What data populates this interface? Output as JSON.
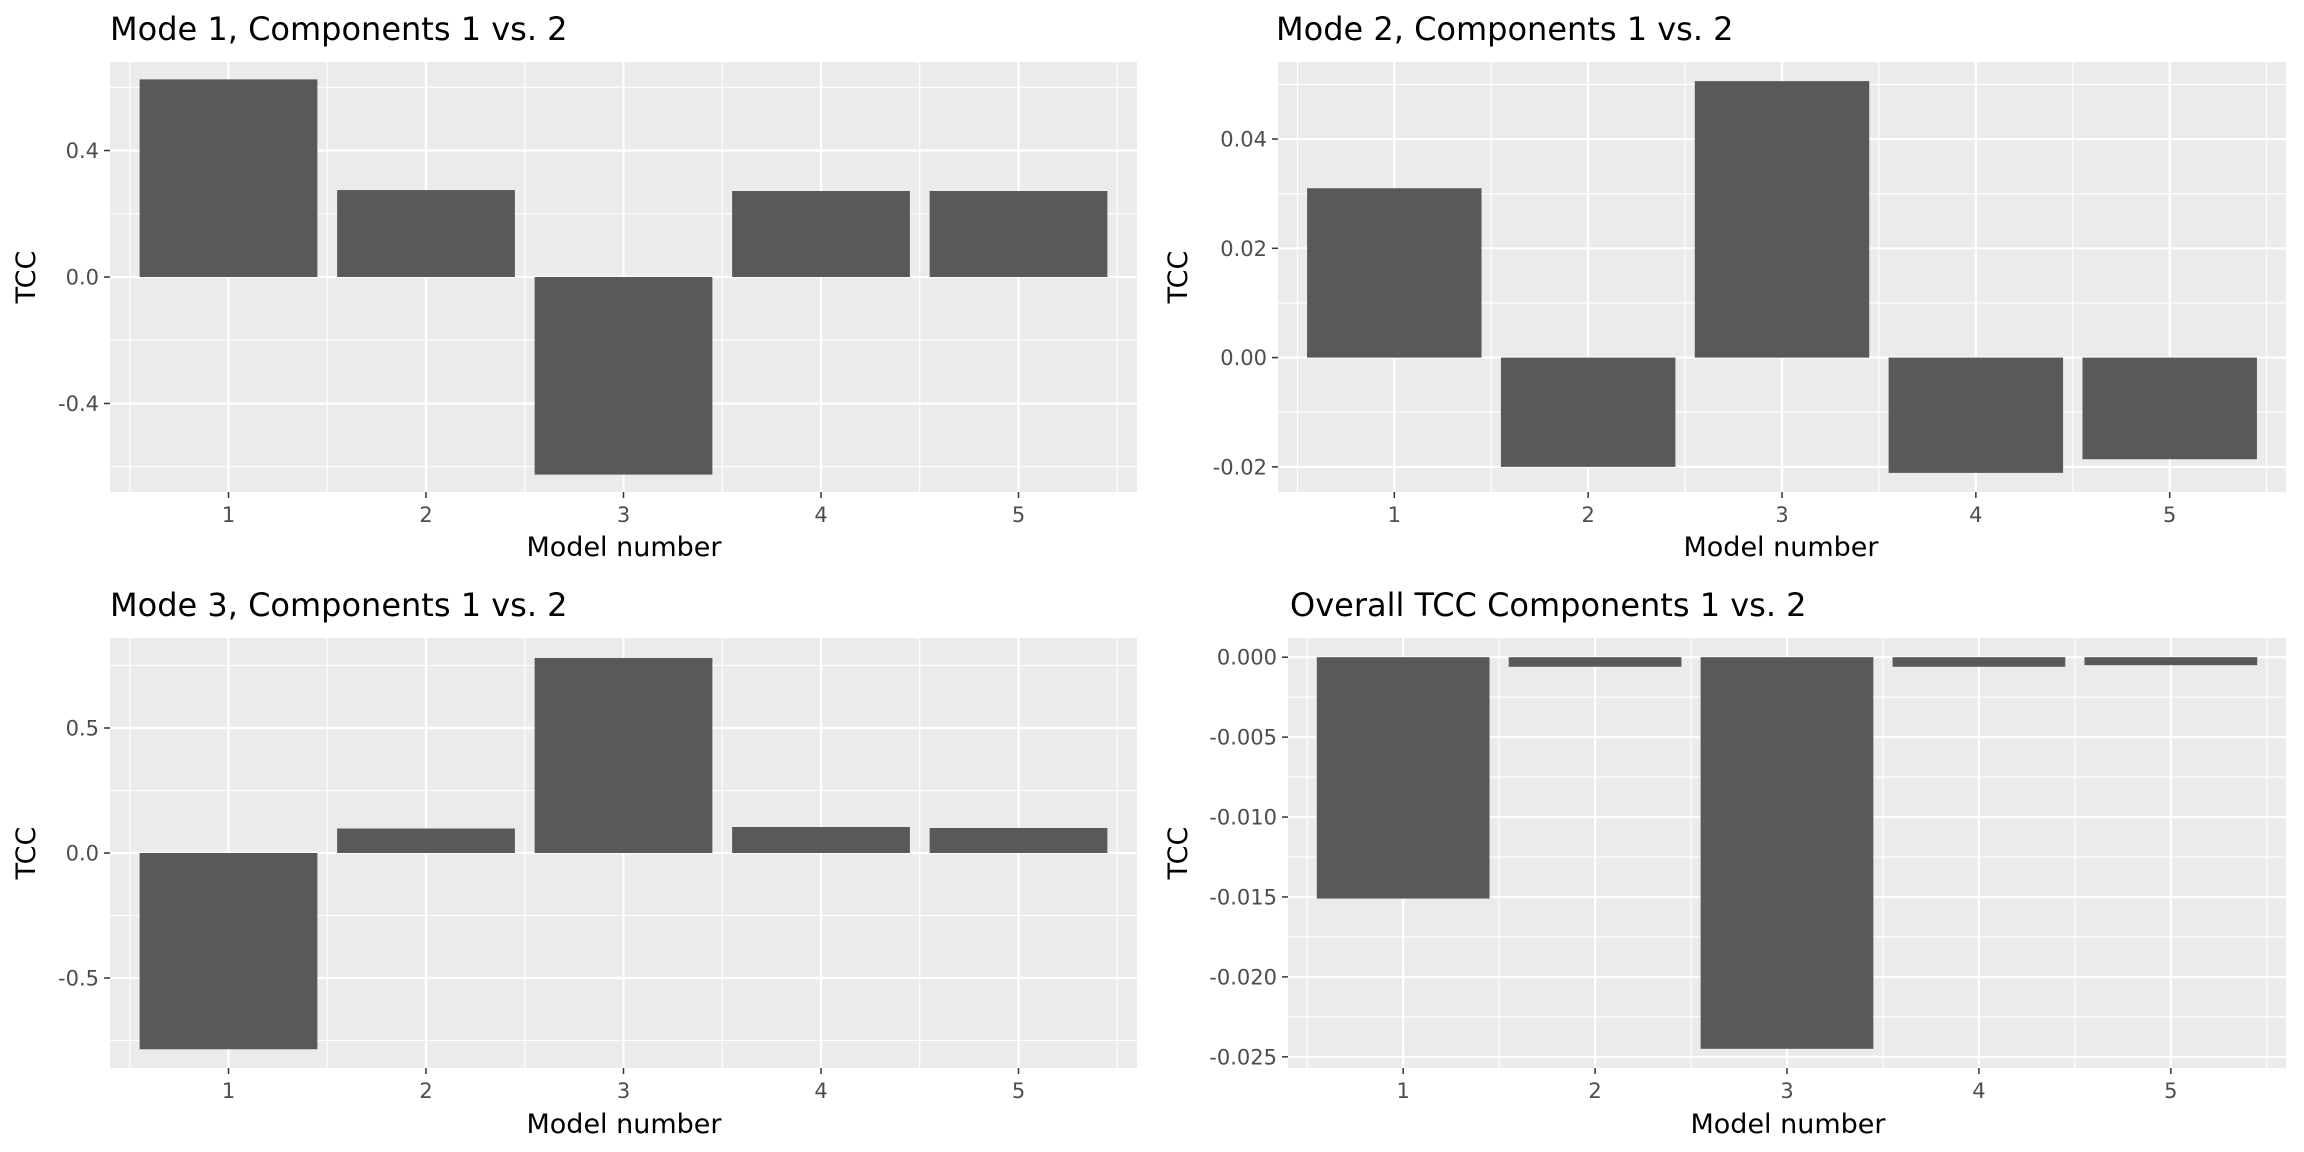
{
  "chart_data": [
    {
      "type": "bar",
      "title": "Mode 1, Components 1 vs. 2",
      "xlabel": "Model number",
      "ylabel": "TCC",
      "categories": [
        "1",
        "2",
        "3",
        "4",
        "5"
      ],
      "values": [
        0.625,
        0.275,
        -0.625,
        0.272,
        0.272
      ],
      "ylim": [
        -0.68,
        0.68
      ],
      "yticks": [
        -0.4,
        0.0,
        0.4
      ],
      "ytick_labels": [
        "-0.4",
        "0.0",
        "0.4"
      ],
      "grid": true,
      "bar_color": "#595959",
      "panel_color": "#ebebeb"
    },
    {
      "type": "bar",
      "title": "Mode 2, Components 1 vs. 2",
      "xlabel": "Model number",
      "ylabel": "TCC",
      "categories": [
        "1",
        "2",
        "3",
        "4",
        "5"
      ],
      "values": [
        0.031,
        -0.02,
        0.0506,
        -0.0211,
        -0.0186
      ],
      "ylim": [
        -0.0246,
        0.0541
      ],
      "yticks": [
        -0.02,
        0.0,
        0.02,
        0.04
      ],
      "ytick_labels": [
        "-0.02",
        "0.00",
        "0.02",
        "0.04"
      ],
      "grid": true,
      "bar_color": "#595959",
      "panel_color": "#ebebeb"
    },
    {
      "type": "bar",
      "title": "Mode 3, Components 1 vs. 2",
      "xlabel": "Model number",
      "ylabel": "TCC",
      "categories": [
        "1",
        "2",
        "3",
        "4",
        "5"
      ],
      "values": [
        -0.785,
        0.098,
        0.78,
        0.104,
        0.1
      ],
      "ylim": [
        -0.86,
        0.86
      ],
      "yticks": [
        -0.5,
        0.0,
        0.5
      ],
      "ytick_labels": [
        "-0.5",
        "0.0",
        "0.5"
      ],
      "grid": true,
      "bar_color": "#595959",
      "panel_color": "#ebebeb"
    },
    {
      "type": "bar",
      "title": "Overall TCC Components 1 vs. 2",
      "xlabel": "Model number",
      "ylabel": "TCC",
      "categories": [
        "1",
        "2",
        "3",
        "4",
        "5"
      ],
      "values": [
        -0.0151,
        -0.0006,
        -0.0245,
        -0.0006,
        -0.0005
      ],
      "ylim": [
        -0.0257,
        0.0012
      ],
      "yticks": [
        -0.025,
        -0.02,
        -0.015,
        -0.01,
        -0.005,
        0.0
      ],
      "ytick_labels": [
        "-0.025",
        "-0.020",
        "-0.015",
        "-0.010",
        "-0.005",
        "0.000"
      ],
      "grid": true,
      "bar_color": "#595959",
      "panel_color": "#ebebeb"
    }
  ]
}
